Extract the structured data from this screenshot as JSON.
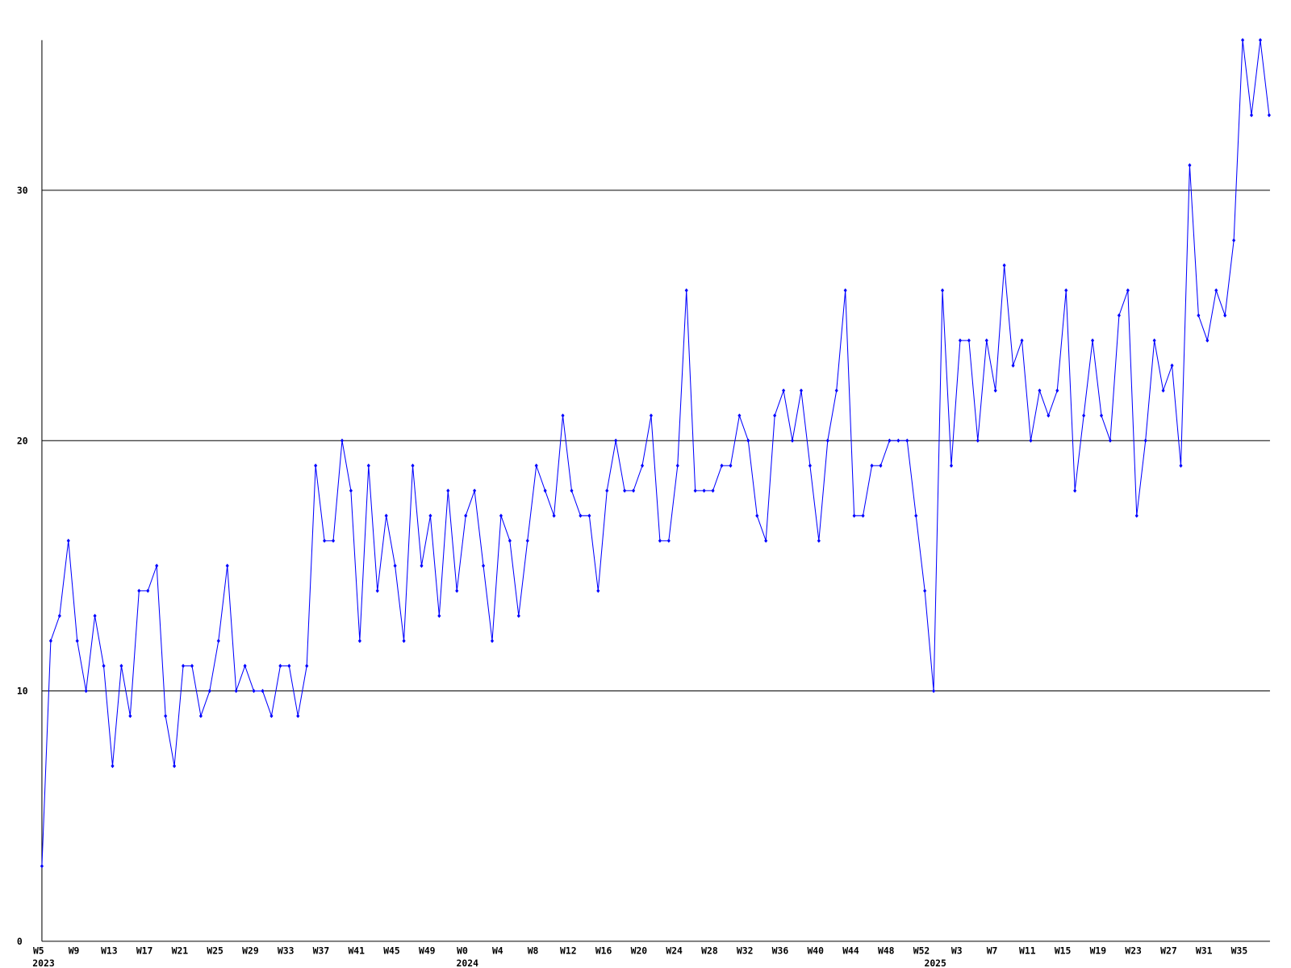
{
  "chart_data": {
    "type": "line",
    "categories": [
      "W5",
      null,
      null,
      null,
      "W9",
      null,
      null,
      null,
      "W13",
      null,
      null,
      null,
      "W17",
      null,
      null,
      null,
      "W21",
      null,
      null,
      null,
      "W25",
      null,
      null,
      null,
      "W29",
      null,
      null,
      null,
      "W33",
      null,
      null,
      null,
      "W37",
      null,
      null,
      null,
      "W41",
      null,
      null,
      null,
      "W45",
      null,
      null,
      null,
      "W49",
      null,
      null,
      null,
      "W0",
      null,
      null,
      null,
      "W4",
      null,
      null,
      null,
      "W8",
      null,
      null,
      null,
      "W12",
      null,
      null,
      null,
      "W16",
      null,
      null,
      null,
      "W20",
      null,
      null,
      null,
      "W24",
      null,
      null,
      null,
      "W28",
      null,
      null,
      null,
      "W32",
      null,
      null,
      null,
      "W36",
      null,
      null,
      null,
      "W40",
      null,
      null,
      null,
      "W44",
      null,
      null,
      null,
      "W48",
      null,
      null,
      null,
      "W52",
      null,
      null,
      null,
      "W3",
      null,
      null,
      null,
      "W7",
      null,
      null,
      null,
      "W11",
      null,
      null,
      null,
      "W15",
      null,
      null,
      null,
      "W19",
      null,
      null,
      null,
      "W23",
      null,
      null,
      null,
      "W27",
      null,
      null,
      null,
      "W31",
      null,
      null,
      null,
      "W35",
      null,
      null,
      null
    ],
    "category_years": [
      "2023",
      null,
      null,
      null,
      null,
      null,
      null,
      null,
      null,
      null,
      null,
      null,
      null,
      null,
      null,
      null,
      null,
      null,
      null,
      null,
      null,
      null,
      null,
      null,
      null,
      null,
      null,
      null,
      null,
      null,
      null,
      null,
      null,
      null,
      null,
      null,
      null,
      null,
      null,
      null,
      null,
      null,
      null,
      null,
      null,
      null,
      null,
      null,
      "2024",
      null,
      null,
      null,
      null,
      null,
      null,
      null,
      null,
      null,
      null,
      null,
      null,
      null,
      null,
      null,
      null,
      null,
      null,
      null,
      null,
      null,
      null,
      null,
      null,
      null,
      null,
      null,
      null,
      null,
      null,
      null,
      null,
      null,
      null,
      null,
      null,
      null,
      null,
      null,
      null,
      null,
      null,
      null,
      null,
      null,
      null,
      null,
      null,
      null,
      null,
      null,
      null,
      "2025",
      null,
      null,
      null,
      null,
      null,
      null,
      null,
      null,
      null,
      null,
      null,
      null,
      null,
      null,
      null,
      null,
      null,
      null,
      null,
      null,
      null,
      null,
      null,
      null,
      null,
      null,
      null,
      null,
      null,
      null,
      null,
      null,
      null,
      null,
      null,
      null,
      null,
      null
    ],
    "series": [
      {
        "color": "#0000ff",
        "values": [
          3,
          12,
          13,
          16,
          12,
          10,
          13,
          11,
          7,
          11,
          9,
          14,
          14,
          15,
          9,
          7,
          11,
          11,
          9,
          10,
          12,
          15,
          10,
          11,
          10,
          10,
          9,
          11,
          11,
          9,
          11,
          19,
          16,
          16,
          20,
          18,
          12,
          19,
          14,
          17,
          15,
          12,
          19,
          15,
          17,
          13,
          18,
          14,
          17,
          18,
          15,
          12,
          17,
          16,
          13,
          16,
          19,
          18,
          17,
          21,
          18,
          17,
          17,
          14,
          18,
          20,
          18,
          18,
          19,
          21,
          16,
          16,
          19,
          26,
          18,
          18,
          18,
          19,
          19,
          21,
          20,
          17,
          16,
          21,
          22,
          20,
          22,
          19,
          16,
          20,
          22,
          26,
          17,
          17,
          19,
          19,
          20,
          20,
          20,
          17,
          14,
          10,
          26,
          19,
          24,
          24,
          20,
          24,
          22,
          27,
          23,
          24,
          20,
          22,
          21,
          22,
          26,
          18,
          21,
          24,
          21,
          20,
          25,
          26,
          17,
          20,
          24,
          22,
          23,
          19,
          31,
          25,
          24,
          26,
          25,
          28,
          36,
          33,
          36,
          33
        ]
      }
    ],
    "ylim": [
      0,
      36
    ],
    "yticks": [
      0,
      10,
      20,
      30
    ],
    "grid": true
  }
}
